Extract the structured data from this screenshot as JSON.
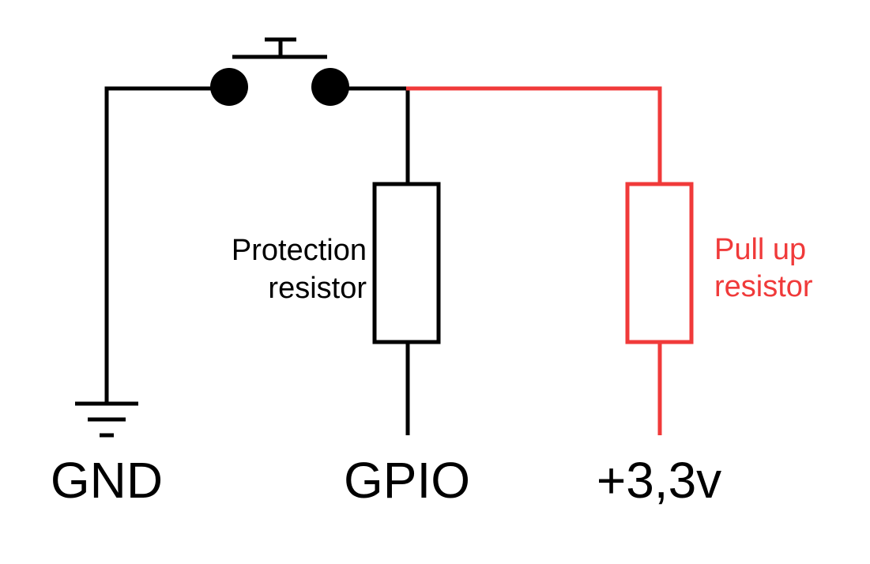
{
  "colors": {
    "wire_default": "#000000",
    "wire_pullup": "#f03a3a",
    "label_default": "#000000",
    "label_pullup": "#f03a3a",
    "contact_fill": "#000000"
  },
  "terminals": {
    "gnd": "GND",
    "gpio": "GPIO",
    "vcc": "+3,3v"
  },
  "components": {
    "protection_resistor": {
      "line1": "Protection",
      "line2": "resistor"
    },
    "pullup_resistor": {
      "line1": "Pull up",
      "line2": "resistor"
    }
  },
  "icons": {
    "switch": "push-button-switch-icon",
    "ground": "ground-symbol-icon"
  }
}
